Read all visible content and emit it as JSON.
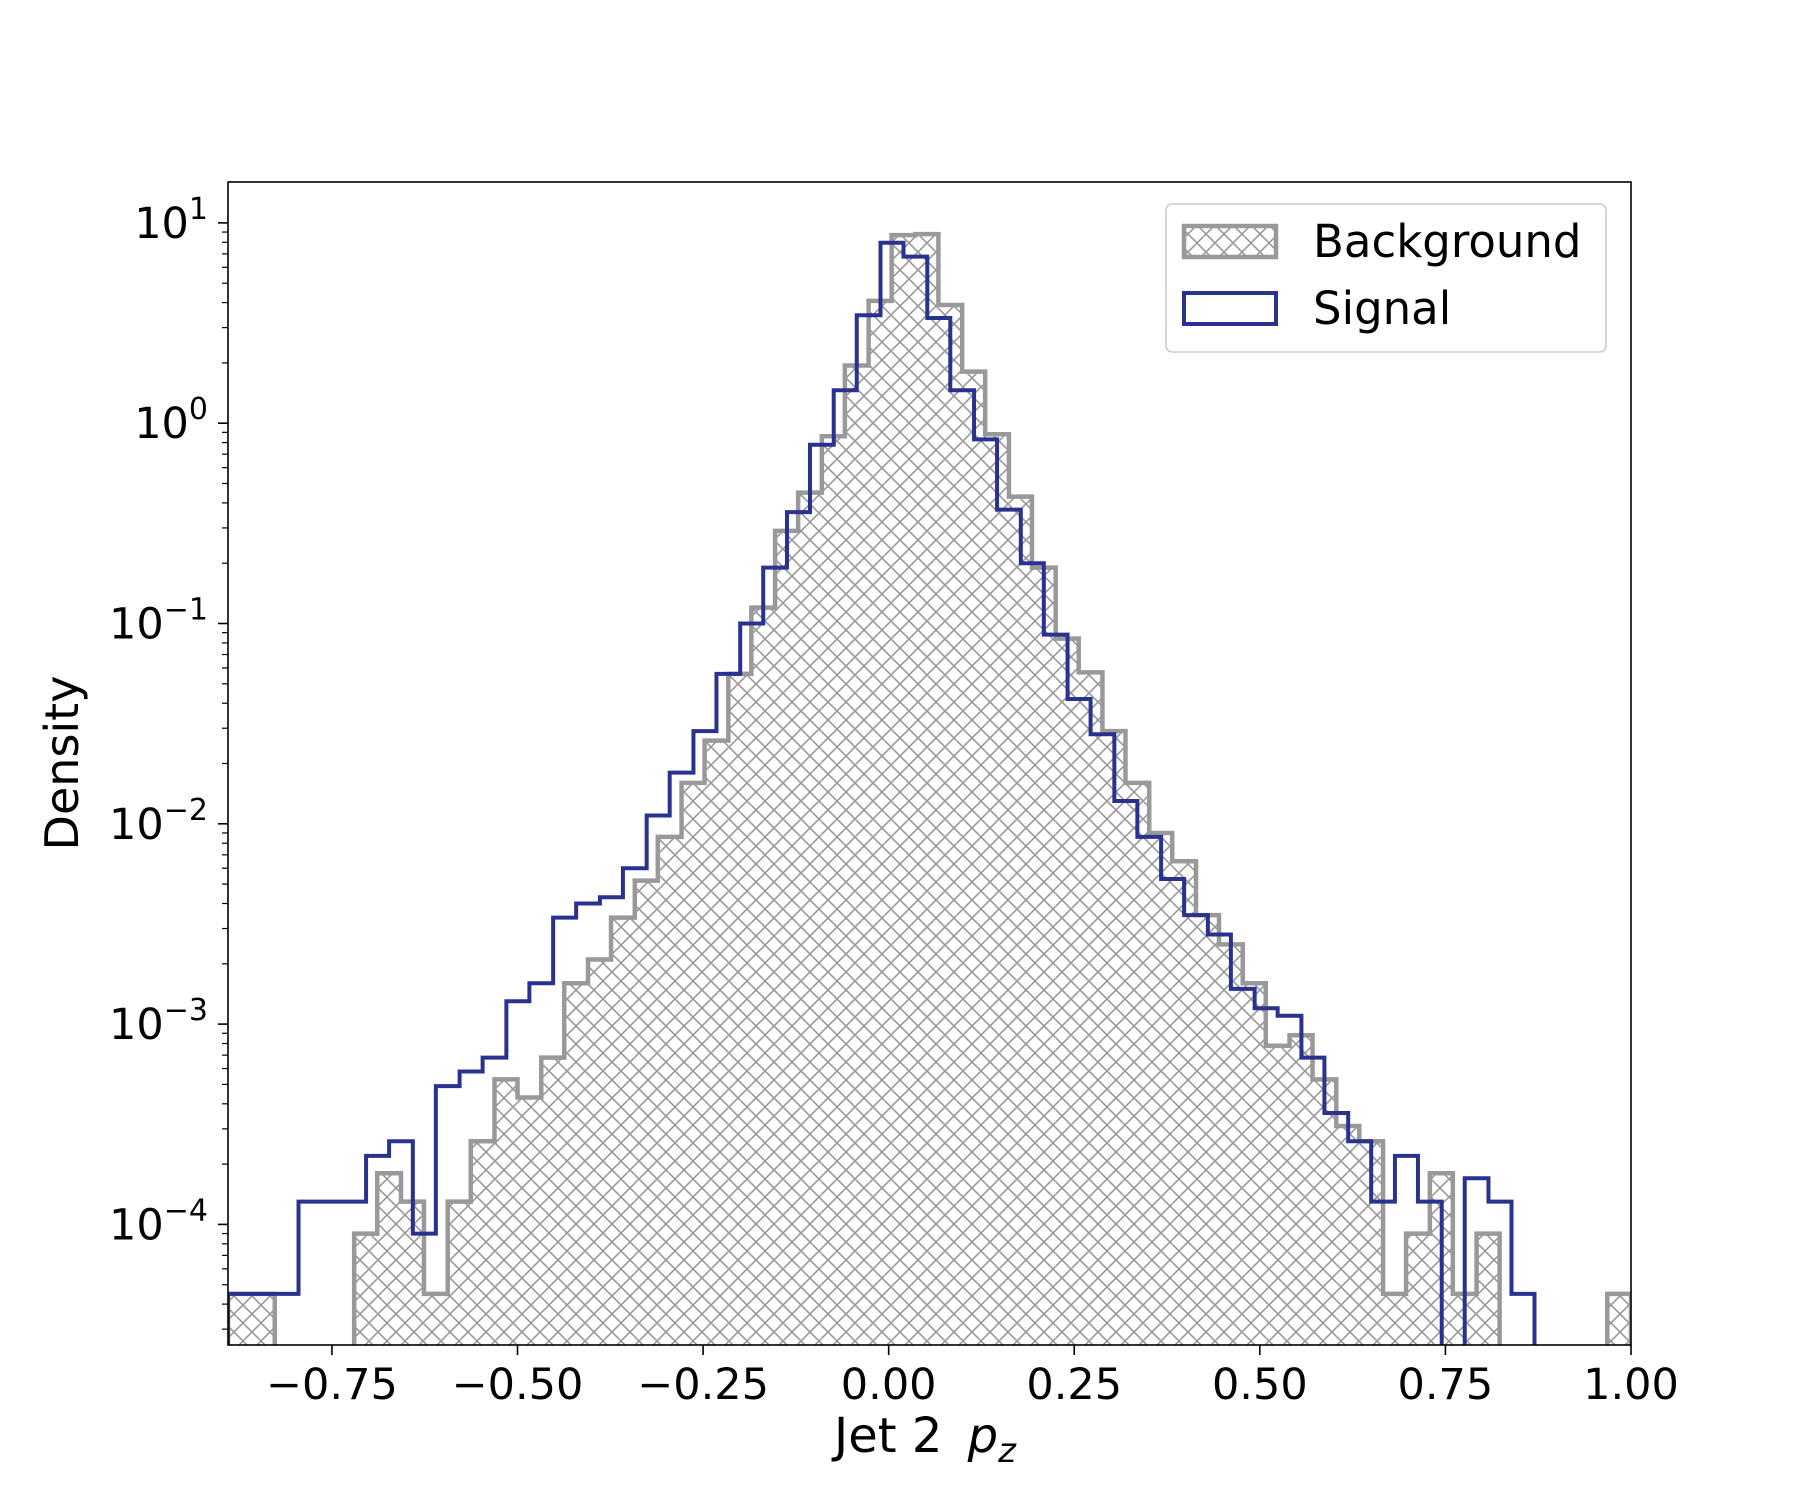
{
  "chart_data": {
    "type": "histogram",
    "xlabel": "Jet 2",
    "xlabel_var_main": "p",
    "xlabel_var_sub": "z",
    "ylabel": "Density",
    "xlim": [
      -0.89,
      1.0
    ],
    "ylim": [
      2.5e-05,
      16
    ],
    "yscale": "log",
    "bin_width": 0.0315,
    "x_ticks": [
      {
        "value": -0.75,
        "label": "−0.75"
      },
      {
        "value": -0.5,
        "label": "−0.50"
      },
      {
        "value": -0.25,
        "label": "−0.25"
      },
      {
        "value": 0.0,
        "label": "0.00"
      },
      {
        "value": 0.25,
        "label": "0.25"
      },
      {
        "value": 0.5,
        "label": "0.50"
      },
      {
        "value": 0.75,
        "label": "0.75"
      },
      {
        "value": 1.0,
        "label": "1.00"
      }
    ],
    "y_ticks": [
      {
        "value": 10,
        "base": "10",
        "exp": "1"
      },
      {
        "value": 1,
        "base": "10",
        "exp": "0"
      },
      {
        "value": 0.1,
        "base": "10",
        "exp": "−1"
      },
      {
        "value": 0.01,
        "base": "10",
        "exp": "−2"
      },
      {
        "value": 0.001,
        "base": "10",
        "exp": "−3"
      },
      {
        "value": 0.0001,
        "base": "10",
        "exp": "−4"
      }
    ],
    "legend_position": "top-right",
    "series": [
      {
        "name": "Background",
        "style": "hatched",
        "color": "#999999",
        "bins": [
          [
            -0.89,
            -0.827,
            4.5e-05
          ],
          [
            -0.827,
            -0.72,
            0
          ],
          [
            -0.72,
            -0.689,
            9e-05
          ],
          [
            -0.689,
            -0.657,
            0.00018
          ],
          [
            -0.657,
            -0.626,
            0.00013
          ],
          [
            -0.626,
            -0.594,
            4.5e-05
          ],
          [
            -0.594,
            -0.563,
            0.00013
          ],
          [
            -0.563,
            -0.531,
            0.00026
          ],
          [
            -0.531,
            -0.5,
            0.00053
          ],
          [
            -0.5,
            -0.468,
            0.00043
          ],
          [
            -0.468,
            -0.437,
            0.00068
          ],
          [
            -0.437,
            -0.405,
            0.0016
          ],
          [
            -0.405,
            -0.374,
            0.0021
          ],
          [
            -0.374,
            -0.342,
            0.0034
          ],
          [
            -0.342,
            -0.311,
            0.0052
          ],
          [
            -0.311,
            -0.279,
            0.0086
          ],
          [
            -0.279,
            -0.248,
            0.016
          ],
          [
            -0.248,
            -0.216,
            0.026
          ],
          [
            -0.216,
            -0.185,
            0.056
          ],
          [
            -0.185,
            -0.153,
            0.12
          ],
          [
            -0.153,
            -0.122,
            0.29
          ],
          [
            -0.122,
            -0.09,
            0.45
          ],
          [
            -0.09,
            -0.059,
            0.86
          ],
          [
            -0.059,
            -0.027,
            1.94
          ],
          [
            -0.027,
            0.004,
            4.08
          ],
          [
            0.004,
            0.036,
            8.69
          ],
          [
            0.036,
            0.067,
            8.79
          ],
          [
            0.067,
            0.099,
            3.89
          ],
          [
            0.099,
            0.13,
            1.81
          ],
          [
            0.13,
            0.162,
            0.88
          ],
          [
            0.162,
            0.193,
            0.43
          ],
          [
            0.193,
            0.225,
            0.19
          ],
          [
            0.225,
            0.256,
            0.084
          ],
          [
            0.256,
            0.288,
            0.057
          ],
          [
            0.288,
            0.319,
            0.029
          ],
          [
            0.319,
            0.351,
            0.016
          ],
          [
            0.351,
            0.382,
            0.009
          ],
          [
            0.382,
            0.414,
            0.0065
          ],
          [
            0.414,
            0.445,
            0.0035
          ],
          [
            0.445,
            0.477,
            0.0025
          ],
          [
            0.477,
            0.508,
            0.0016
          ],
          [
            0.508,
            0.54,
            0.00078
          ],
          [
            0.54,
            0.571,
            0.00088
          ],
          [
            0.571,
            0.603,
            0.00053
          ],
          [
            0.603,
            0.634,
            0.00031
          ],
          [
            0.634,
            0.666,
            0.00026
          ],
          [
            0.666,
            0.697,
            4.5e-05
          ],
          [
            0.697,
            0.729,
            9e-05
          ],
          [
            0.729,
            0.76,
            0.00018
          ],
          [
            0.76,
            0.792,
            4.5e-05
          ],
          [
            0.792,
            0.823,
            9e-05
          ],
          [
            0.823,
            0.968,
            0
          ],
          [
            0.968,
            1.0,
            4.5e-05
          ]
        ]
      },
      {
        "name": "Signal",
        "style": "step",
        "color": "#2a3290",
        "bins": [
          [
            -0.89,
            -0.795,
            4.5e-05
          ],
          [
            -0.795,
            -0.704,
            0.00013
          ],
          [
            -0.704,
            -0.673,
            0.00022
          ],
          [
            -0.673,
            -0.641,
            0.00026
          ],
          [
            -0.641,
            -0.61,
            9e-05
          ],
          [
            -0.61,
            -0.578,
            0.00049
          ],
          [
            -0.578,
            -0.547,
            0.00058
          ],
          [
            -0.547,
            -0.515,
            0.00068
          ],
          [
            -0.515,
            -0.484,
            0.0013
          ],
          [
            -0.484,
            -0.452,
            0.0016
          ],
          [
            -0.452,
            -0.421,
            0.0034
          ],
          [
            -0.421,
            -0.389,
            0.004
          ],
          [
            -0.389,
            -0.358,
            0.0043
          ],
          [
            -0.358,
            -0.326,
            0.006
          ],
          [
            -0.326,
            -0.295,
            0.011
          ],
          [
            -0.295,
            -0.263,
            0.018
          ],
          [
            -0.263,
            -0.232,
            0.029
          ],
          [
            -0.232,
            -0.2,
            0.056
          ],
          [
            -0.2,
            -0.169,
            0.1
          ],
          [
            -0.169,
            -0.137,
            0.19
          ],
          [
            -0.137,
            -0.106,
            0.36
          ],
          [
            -0.106,
            -0.074,
            0.78
          ],
          [
            -0.074,
            -0.043,
            1.46
          ],
          [
            -0.043,
            -0.011,
            3.46
          ],
          [
            -0.011,
            0.02,
            7.96
          ],
          [
            0.02,
            0.052,
            6.79
          ],
          [
            0.052,
            0.083,
            3.35
          ],
          [
            0.083,
            0.115,
            1.46
          ],
          [
            0.115,
            0.146,
            0.83
          ],
          [
            0.146,
            0.178,
            0.37
          ],
          [
            0.178,
            0.209,
            0.2
          ],
          [
            0.209,
            0.241,
            0.088
          ],
          [
            0.241,
            0.272,
            0.042
          ],
          [
            0.272,
            0.304,
            0.028
          ],
          [
            0.304,
            0.335,
            0.013
          ],
          [
            0.335,
            0.367,
            0.0086
          ],
          [
            0.367,
            0.398,
            0.0053
          ],
          [
            0.398,
            0.43,
            0.0035
          ],
          [
            0.43,
            0.461,
            0.0028
          ],
          [
            0.461,
            0.493,
            0.0015
          ],
          [
            0.493,
            0.524,
            0.0012
          ],
          [
            0.524,
            0.556,
            0.0011
          ],
          [
            0.556,
            0.587,
            0.00068
          ],
          [
            0.587,
            0.619,
            0.00036
          ],
          [
            0.619,
            0.65,
            0.00026
          ],
          [
            0.65,
            0.682,
            0.00013
          ],
          [
            0.682,
            0.713,
            0.00022
          ],
          [
            0.713,
            0.745,
            0.00013
          ],
          [
            0.745,
            0.776,
            0
          ],
          [
            0.776,
            0.808,
            0.00017
          ],
          [
            0.808,
            0.839,
            0.00013
          ],
          [
            0.839,
            0.87,
            4.5e-05
          ]
        ]
      }
    ]
  }
}
